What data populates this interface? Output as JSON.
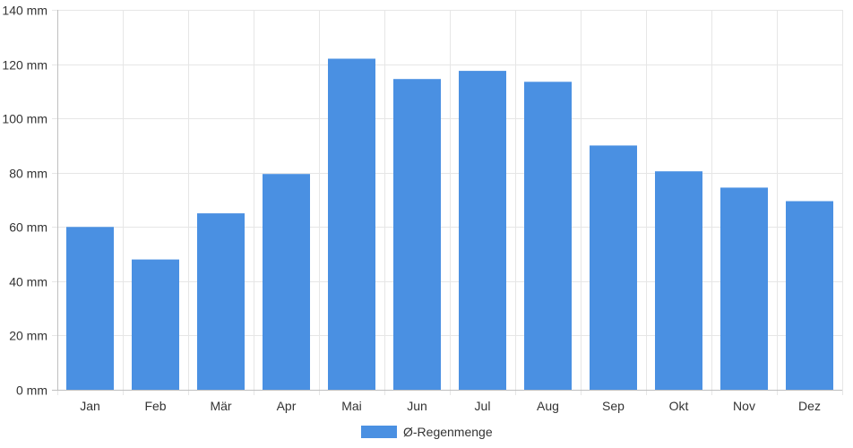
{
  "chart_data": {
    "type": "bar",
    "categories": [
      "Jan",
      "Feb",
      "Mär",
      "Apr",
      "Mai",
      "Jun",
      "Jul",
      "Aug",
      "Sep",
      "Okt",
      "Nov",
      "Dez"
    ],
    "series": [
      {
        "name": "Ø-Regenmenge",
        "color": "#4a90e2",
        "values": [
          60,
          48,
          65,
          79.5,
          122,
          114.5,
          117.5,
          113.5,
          90,
          80.5,
          74.5,
          69.5
        ]
      }
    ],
    "ylim": [
      0,
      140
    ],
    "y_ticks": [
      "0 mm",
      "20 mm",
      "40 mm",
      "60 mm",
      "80 mm",
      "100 mm",
      "120 mm",
      "140 mm"
    ],
    "y_tick_values": [
      0,
      20,
      40,
      60,
      80,
      100,
      120,
      140
    ],
    "grid": true,
    "legend_position": "bottom-center",
    "colors": {
      "grid": "#e6e6e6",
      "axis": "#bfbfbf",
      "text": "#333333"
    }
  }
}
